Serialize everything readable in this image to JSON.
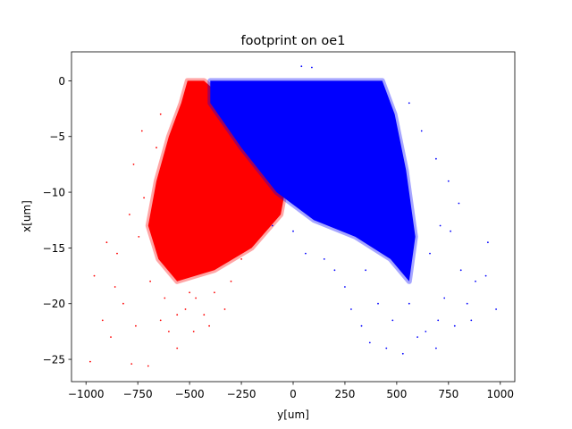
{
  "chart_data": {
    "type": "scatter",
    "title": "footprint on oe1",
    "xlabel": "y[um]",
    "ylabel": "x[um]",
    "xlim": [
      -1070,
      1070
    ],
    "ylim": [
      -27,
      2.6
    ],
    "grid": false,
    "legend": "none",
    "x_ticks": [
      {
        "value": -1000,
        "label": "−1000"
      },
      {
        "value": -750,
        "label": "−750"
      },
      {
        "value": -500,
        "label": "−500"
      },
      {
        "value": -250,
        "label": "−250"
      },
      {
        "value": 0,
        "label": "0"
      },
      {
        "value": 250,
        "label": "250"
      },
      {
        "value": 500,
        "label": "500"
      },
      {
        "value": 750,
        "label": "750"
      },
      {
        "value": 1000,
        "label": "1000"
      }
    ],
    "y_ticks": [
      {
        "value": 0,
        "label": "0"
      },
      {
        "value": -5,
        "label": "−5"
      },
      {
        "value": -10,
        "label": "−10"
      },
      {
        "value": -15,
        "label": "−15"
      },
      {
        "value": -20,
        "label": "−20"
      },
      {
        "value": -25,
        "label": "−25"
      }
    ],
    "series": [
      {
        "color": "#ff0000",
        "outline": [
          [
            -510,
            0
          ],
          [
            -430,
            0
          ],
          [
            -250,
            -3
          ],
          [
            -120,
            -7
          ],
          [
            -40,
            -10
          ],
          [
            -60,
            -12
          ],
          [
            -200,
            -15
          ],
          [
            -380,
            -17
          ],
          [
            -560,
            -18
          ],
          [
            -650,
            -16
          ],
          [
            -700,
            -13
          ],
          [
            -660,
            -9
          ],
          [
            -600,
            -5
          ],
          [
            -540,
            -2
          ]
        ],
        "points": [
          [
            -980,
            -25.2
          ],
          [
            -920,
            -21.5
          ],
          [
            -960,
            -17.5
          ],
          [
            -900,
            -14.5
          ],
          [
            -860,
            -18.5
          ],
          [
            -780,
            -25.4
          ],
          [
            -700,
            -25.6
          ],
          [
            -880,
            -23.0
          ],
          [
            -820,
            -20.0
          ],
          [
            -770,
            -7.5
          ],
          [
            -730,
            -4.5
          ],
          [
            -790,
            -12.0
          ],
          [
            -760,
            -22.0
          ],
          [
            -640,
            -21.5
          ],
          [
            -600,
            -22.5
          ],
          [
            -560,
            -24.0
          ],
          [
            -520,
            -20.5
          ],
          [
            -470,
            -19.5
          ],
          [
            -430,
            -21.0
          ],
          [
            -380,
            -19.0
          ],
          [
            -660,
            -6.0
          ],
          [
            -640,
            -3.0
          ],
          [
            -500,
            -19.0
          ],
          [
            -300,
            -18.0
          ],
          [
            -250,
            -16.0
          ],
          [
            -690,
            -18.0
          ],
          [
            -620,
            -19.5
          ],
          [
            -850,
            -15.5
          ],
          [
            -720,
            -10.5
          ],
          [
            -745,
            -14.0
          ],
          [
            -405,
            -22.0
          ],
          [
            -330,
            -20.5
          ],
          [
            -200,
            -14.5
          ],
          [
            -150,
            -13.0
          ],
          [
            -560,
            -21.0
          ],
          [
            -480,
            -22.5
          ]
        ]
      },
      {
        "color": "#0000ff",
        "outline": [
          [
            -400,
            0
          ],
          [
            430,
            0
          ],
          [
            490,
            -3
          ],
          [
            545,
            -8
          ],
          [
            590,
            -14
          ],
          [
            560,
            -18
          ],
          [
            470,
            -16
          ],
          [
            300,
            -14
          ],
          [
            100,
            -12.5
          ],
          [
            -80,
            -10
          ],
          [
            -250,
            -6
          ],
          [
            -400,
            -2
          ]
        ],
        "points": [
          [
            40,
            1.3
          ],
          [
            90,
            1.2
          ],
          [
            800,
            -11.0
          ],
          [
            810,
            -17.0
          ],
          [
            880,
            -18.0
          ],
          [
            930,
            -17.5
          ],
          [
            980,
            -20.5
          ],
          [
            860,
            -21.5
          ],
          [
            780,
            -22.0
          ],
          [
            730,
            -19.5
          ],
          [
            700,
            -21.5
          ],
          [
            690,
            -24.0
          ],
          [
            640,
            -22.5
          ],
          [
            600,
            -23.0
          ],
          [
            410,
            -20.0
          ],
          [
            370,
            -23.5
          ],
          [
            330,
            -22.0
          ],
          [
            450,
            -24.0
          ],
          [
            530,
            -24.5
          ],
          [
            660,
            -15.5
          ],
          [
            710,
            -13.0
          ],
          [
            750,
            -9.0
          ],
          [
            690,
            -7.0
          ],
          [
            620,
            -4.5
          ],
          [
            560,
            -2.0
          ],
          [
            250,
            -18.5
          ],
          [
            200,
            -17.0
          ],
          [
            150,
            -16.0
          ],
          [
            560,
            -20.0
          ],
          [
            760,
            -13.5
          ],
          [
            940,
            -14.5
          ],
          [
            840,
            -20.0
          ],
          [
            350,
            -17.0
          ],
          [
            480,
            -21.5
          ],
          [
            -100,
            -13.0
          ],
          [
            0,
            -13.5
          ],
          [
            60,
            -15.5
          ],
          [
            280,
            -20.5
          ]
        ]
      }
    ]
  }
}
